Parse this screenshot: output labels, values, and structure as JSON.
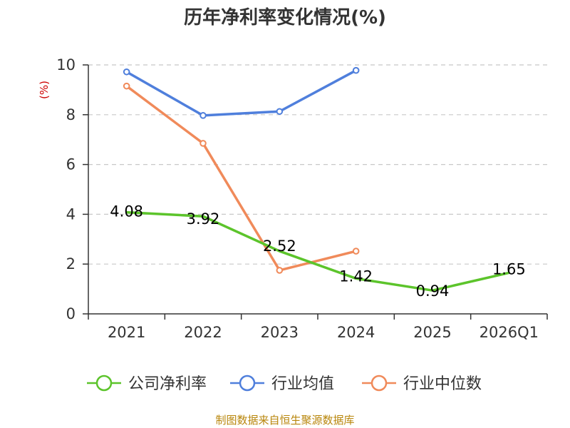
{
  "chart_data": {
    "type": "line",
    "title": "历年净利率变化情况(%)",
    "ylabel": "(%)",
    "xlabel": "",
    "categories": [
      "2021",
      "2022",
      "2023",
      "2024",
      "2025",
      "2026Q1"
    ],
    "ylim": [
      0,
      10
    ],
    "yticks": [
      0,
      2,
      4,
      6,
      8,
      10
    ],
    "grid": true,
    "legend_position": "bottom",
    "series": [
      {
        "name": "公司净利率",
        "color": "#5cc42b",
        "values": [
          4.08,
          3.92,
          2.52,
          1.42,
          0.94,
          1.65
        ],
        "labels": [
          "4.08",
          "3.92",
          "2.52",
          "1.42",
          "0.94",
          "1.65"
        ],
        "markers": false
      },
      {
        "name": "行业均值",
        "color": "#4f7fdc",
        "values": [
          9.72,
          7.97,
          8.13,
          9.78,
          null,
          null
        ],
        "markers": true
      },
      {
        "name": "行业中位数",
        "color": "#f08a5a",
        "values": [
          9.15,
          6.85,
          1.75,
          2.52,
          null,
          null
        ],
        "markers": true
      }
    ]
  },
  "footer": {
    "source": "制图数据来自恒生聚源数据库"
  }
}
